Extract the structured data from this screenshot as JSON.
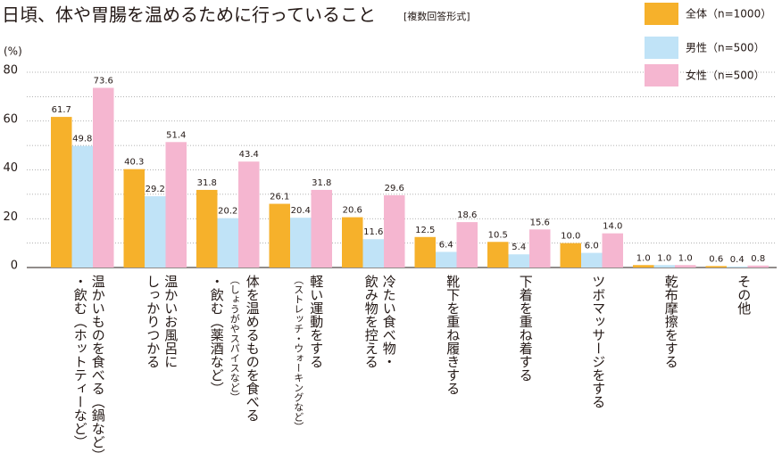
{
  "chart_data": {
    "type": "bar",
    "title": "日頃、体や胃腸を温めるために行っていること",
    "subtitle": "[複数回答形式]",
    "y_unit": "(%)",
    "categories": [
      [
        "温かいものを食べる（鍋など）",
        "・飲む（ホットティーなど）"
      ],
      [
        "温かいお風呂に",
        "しっかりつかる"
      ],
      [
        "体を温めるものを食べる",
        "（しょうがやスパイスなど）",
        "・飲む（薬酒など）"
      ],
      [
        "軽い運動をする",
        "（ストレッチ・ウォーキングなど）"
      ],
      [
        "冷たい食べ物・",
        "飲み物を控える"
      ],
      [
        "靴下を重ね履きする"
      ],
      [
        "下着を重ね着する"
      ],
      [
        "ツボマッサージをする"
      ],
      [
        "乾布摩擦をする"
      ],
      [
        "その他"
      ]
    ],
    "series": [
      {
        "name": "全体（n=1000）",
        "color": "#f6b12b",
        "values": [
          61.7,
          40.3,
          31.8,
          26.1,
          20.6,
          12.5,
          10.5,
          10.0,
          1.0,
          0.6
        ],
        "value_labels": [
          "61.7",
          "40.3",
          "31.8",
          "26.1",
          "20.6",
          "12.5",
          "10.5",
          "10.0",
          "1.0",
          "0.6"
        ]
      },
      {
        "name": "男性（n=500）",
        "color": "#c0e3f7",
        "values": [
          49.8,
          29.2,
          20.2,
          20.4,
          11.6,
          6.4,
          5.4,
          6.0,
          1.0,
          0.4
        ],
        "value_labels": [
          "49.8",
          "29.2",
          "20.2",
          "20.4",
          "11.6",
          "6.4",
          "5.4",
          "6.0",
          "1.0",
          "0.4"
        ]
      },
      {
        "name": "女性（n=500）",
        "color": "#f5b6d0",
        "values": [
          73.6,
          51.4,
          43.4,
          31.8,
          29.6,
          18.6,
          15.6,
          14.0,
          1.0,
          0.8
        ],
        "value_labels": [
          "73.6",
          "51.4",
          "43.4",
          "31.8",
          "29.6",
          "18.6",
          "15.6",
          "14.0",
          "1.0",
          "0.8"
        ]
      }
    ],
    "ylim": [
      0,
      80
    ],
    "yticks": [
      0,
      20,
      40,
      60,
      80
    ],
    "minor_yticks": [
      10,
      30,
      50,
      70
    ],
    "grid": true
  }
}
